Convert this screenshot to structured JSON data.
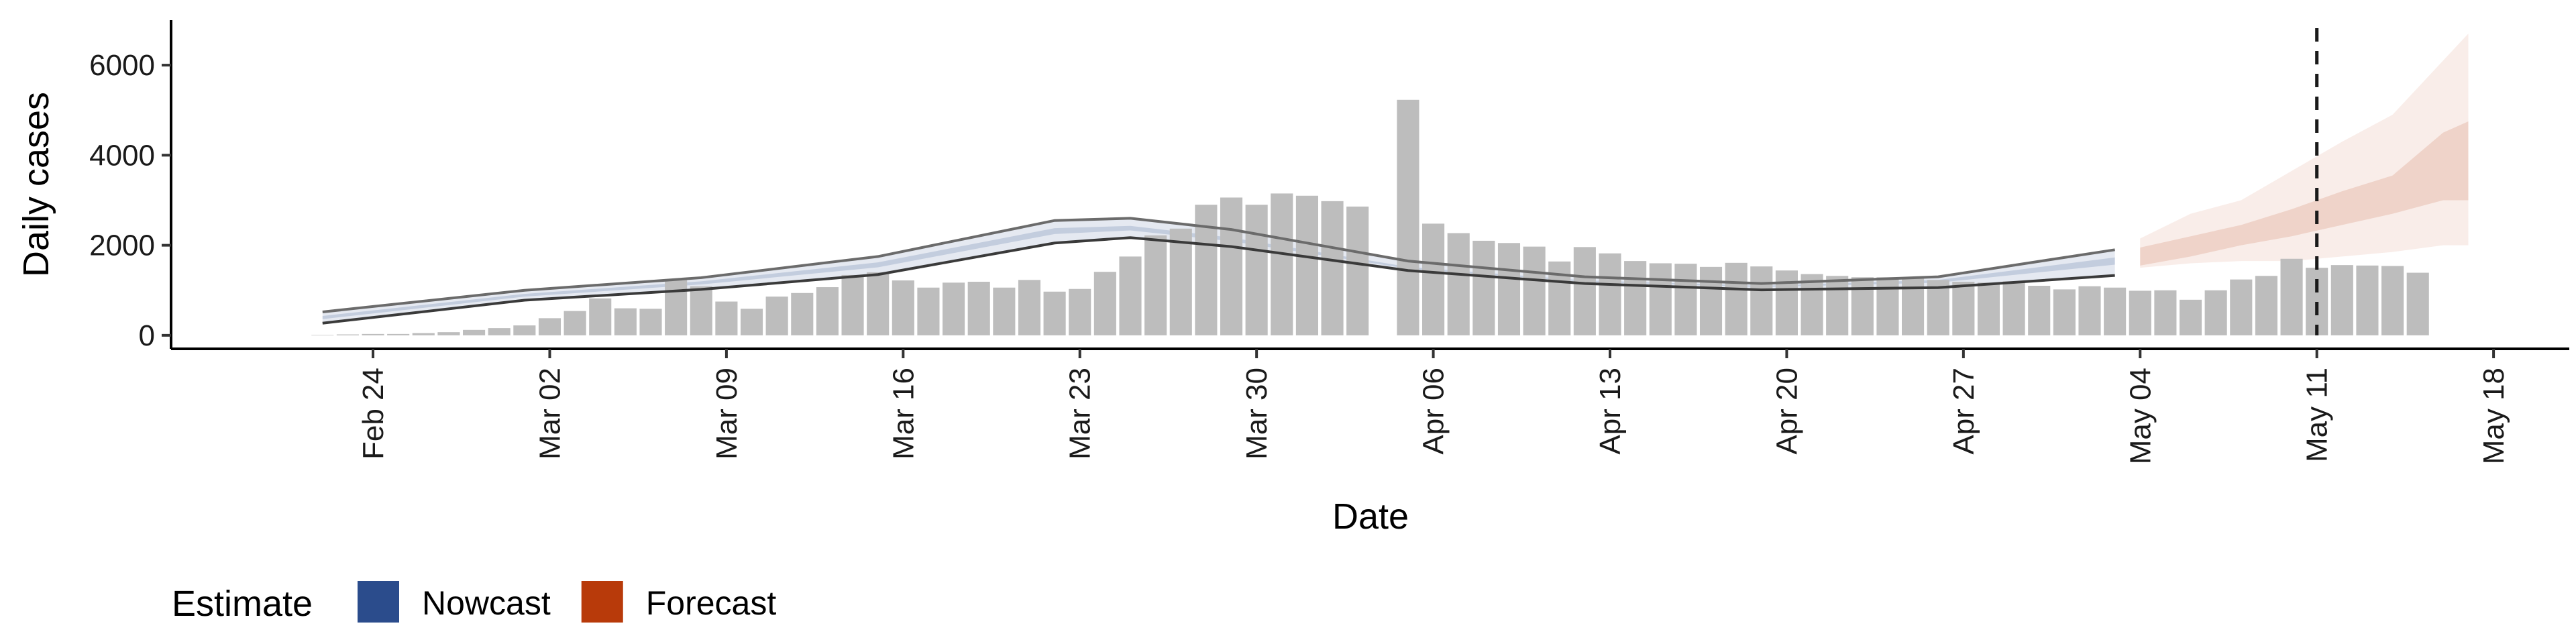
{
  "chart_data": {
    "type": "bar",
    "xlabel": "Date",
    "ylabel": "Daily cases",
    "ylim": [
      -300,
      7000
    ],
    "xlim": [
      "2020-02-16",
      "2020-05-21"
    ],
    "y_ticks": [
      0,
      2000,
      4000,
      6000
    ],
    "x_ticks": [
      {
        "date": "2020-02-24",
        "label": "Feb 24"
      },
      {
        "date": "2020-03-02",
        "label": "Mar 02"
      },
      {
        "date": "2020-03-09",
        "label": "Mar 09"
      },
      {
        "date": "2020-03-16",
        "label": "Mar 16"
      },
      {
        "date": "2020-03-23",
        "label": "Mar 23"
      },
      {
        "date": "2020-03-30",
        "label": "Mar 30"
      },
      {
        "date": "2020-04-06",
        "label": "Apr 06"
      },
      {
        "date": "2020-04-13",
        "label": "Apr 13"
      },
      {
        "date": "2020-04-20",
        "label": "Apr 20"
      },
      {
        "date": "2020-04-27",
        "label": "Apr 27"
      },
      {
        "date": "2020-05-04",
        "label": "May 04"
      },
      {
        "date": "2020-05-11",
        "label": "May 11"
      },
      {
        "date": "2020-05-18",
        "label": "May 18"
      }
    ],
    "reference_line": {
      "date": "2020-05-11",
      "style": "dashed"
    },
    "grid": false,
    "colors": {
      "bars": "#bdbdbd",
      "nowcast": "#2b4c8c",
      "forecast": "#b83a0a",
      "band_line": "#6b6b6b",
      "axis": "#000000"
    },
    "observed_cases": {
      "start_date": "2020-02-22",
      "values": [
        10,
        20,
        30,
        30,
        50,
        70,
        120,
        160,
        220,
        380,
        540,
        820,
        600,
        590,
        1250,
        1090,
        750,
        590,
        860,
        940,
        1070,
        1340,
        1400,
        1220,
        1060,
        1170,
        1190,
        1060,
        1230,
        970,
        1030,
        1410,
        1750,
        2220,
        2370,
        2900,
        3060,
        2900,
        3150,
        3100,
        2980,
        2860,
        0,
        5230,
        2480,
        2270,
        2100,
        2050,
        1970,
        1640,
        1960,
        1820,
        1650,
        1600,
        1590,
        1520,
        1610,
        1530,
        1440,
        1360,
        1320,
        1290,
        1290,
        1270,
        1230,
        1190,
        1170,
        1200,
        1100,
        1020,
        1090,
        1060,
        990,
        1000,
        790,
        1000,
        1240,
        1320,
        1700,
        1500,
        1560,
        1550,
        1540,
        1390
      ]
    },
    "series": [
      {
        "name": "Nowcast",
        "dates": [
          "2020-02-22",
          "2020-03-01",
          "2020-03-08",
          "2020-03-15",
          "2020-03-22",
          "2020-03-25",
          "2020-03-29",
          "2020-04-05",
          "2020-04-12",
          "2020-04-19",
          "2020-04-26",
          "2020-05-03"
        ],
        "outer_upper": [
          520,
          1000,
          1280,
          1750,
          2550,
          2600,
          2350,
          1650,
          1300,
          1150,
          1300,
          1900
        ],
        "inner_upper": [
          430,
          920,
          1200,
          1620,
          2380,
          2430,
          2170,
          1520,
          1220,
          1100,
          1230,
          1730
        ],
        "inner_lower": [
          360,
          860,
          1130,
          1510,
          2250,
          2330,
          2090,
          1480,
          1190,
          1070,
          1170,
          1570
        ],
        "outer_lower": [
          270,
          780,
          1020,
          1350,
          2050,
          2170,
          1970,
          1440,
          1150,
          1010,
          1060,
          1330
        ]
      },
      {
        "name": "Forecast",
        "dates": [
          "2020-05-04",
          "2020-05-06",
          "2020-05-08",
          "2020-05-10",
          "2020-05-12",
          "2020-05-14",
          "2020-05-16",
          "2020-05-17"
        ],
        "outer_upper": [
          2150,
          2700,
          3000,
          3650,
          4300,
          4900,
          6100,
          6700
        ],
        "inner_upper": [
          1950,
          2200,
          2450,
          2800,
          3200,
          3550,
          4500,
          4750
        ],
        "inner_lower": [
          1550,
          1750,
          2000,
          2200,
          2450,
          2700,
          3000,
          3000
        ],
        "outer_lower": [
          1500,
          1600,
          1650,
          1650,
          1750,
          1850,
          2000,
          2000
        ]
      }
    ],
    "legend": {
      "title": "Estimate",
      "position": "bottom-left",
      "entries": [
        {
          "label": "Nowcast",
          "color": "#2b4c8c"
        },
        {
          "label": "Forecast",
          "color": "#b83a0a"
        }
      ]
    }
  }
}
